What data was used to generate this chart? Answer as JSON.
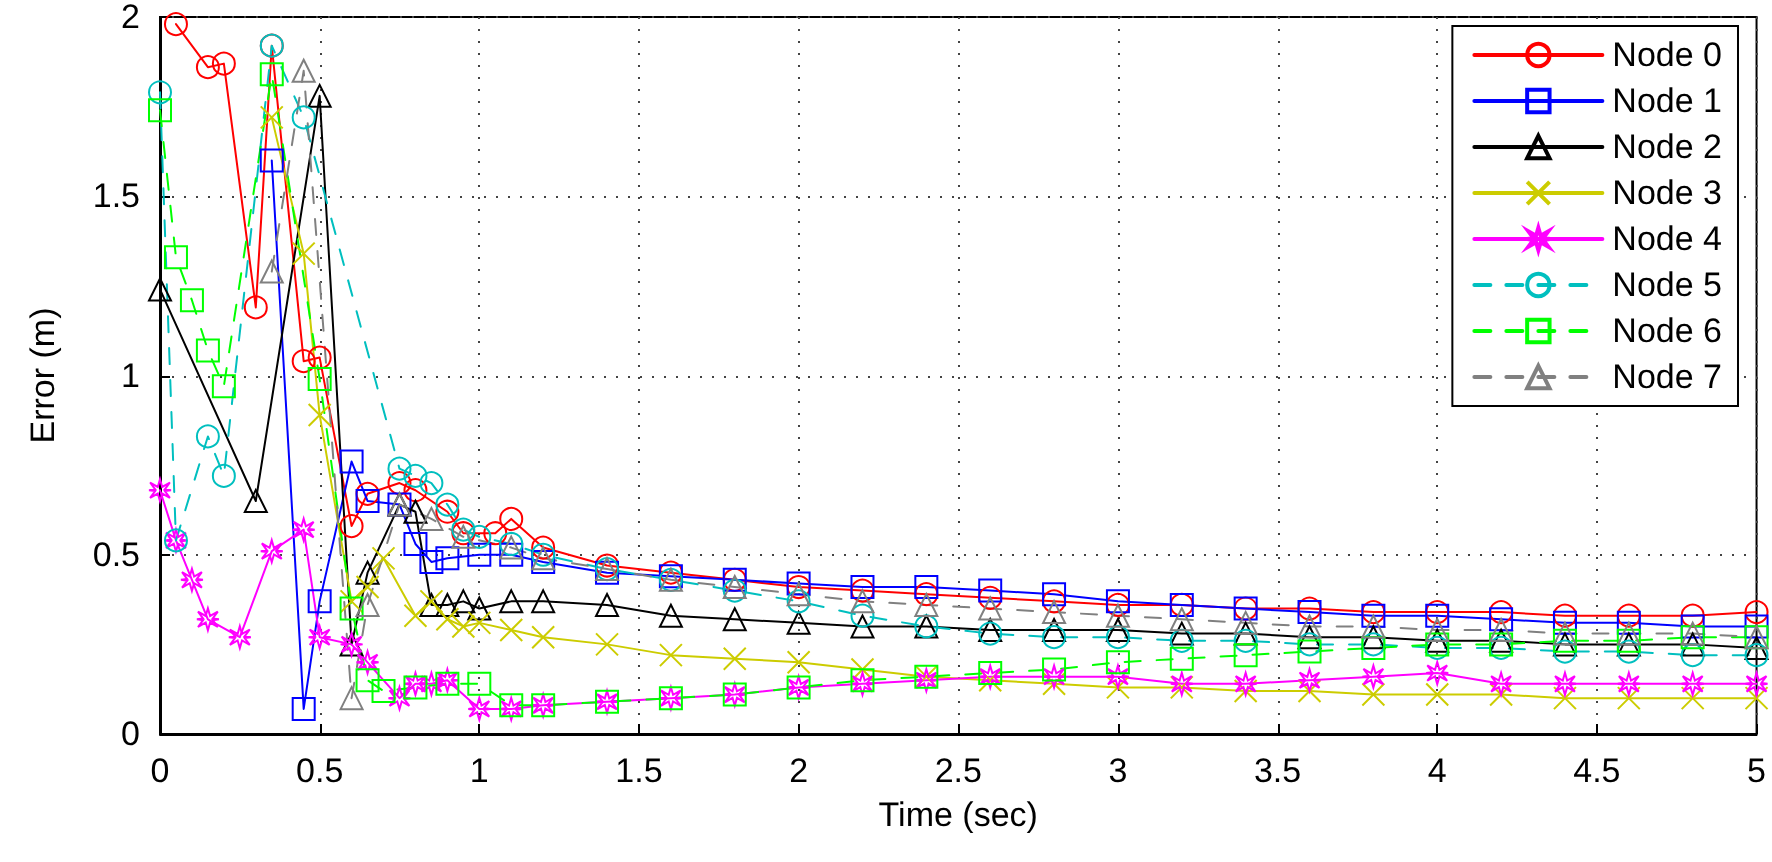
{
  "chart_data": {
    "type": "line",
    "xlabel": "Time (sec)",
    "ylabel": "Error (m)",
    "xlim": [
      0,
      5
    ],
    "xticks": [
      0,
      0.5,
      1,
      1.5,
      2,
      2.5,
      3,
      3.5,
      4,
      4.5,
      5
    ],
    "ylim": [
      0,
      2
    ],
    "yticks": [
      0,
      0.5,
      1,
      1.5,
      2
    ],
    "grid": true,
    "legend": "top right",
    "series": [
      {
        "name": "Node 0",
        "color": "#ff0000",
        "marker": "circle",
        "line_style": "solid",
        "x": [
          0.05,
          0.15,
          0.2,
          0.3,
          0.35,
          0.45,
          0.5,
          0.6,
          0.65,
          0.75,
          0.8,
          0.9,
          0.95,
          1.05,
          1.1,
          1.2,
          1.4,
          1.6,
          1.8,
          2,
          2.2,
          2.4,
          2.6,
          2.8,
          3,
          3.2,
          3.4,
          3.6,
          3.8,
          4,
          4.2,
          4.4,
          4.6,
          4.8,
          5
        ],
        "values": [
          1.98,
          1.86,
          1.87,
          1.19,
          1.92,
          1.04,
          1.05,
          0.58,
          0.67,
          0.7,
          0.68,
          0.62,
          0.56,
          0.56,
          0.6,
          0.52,
          0.47,
          0.45,
          0.43,
          0.41,
          0.4,
          0.39,
          0.38,
          0.37,
          0.36,
          0.36,
          0.35,
          0.35,
          0.34,
          0.34,
          0.34,
          0.33,
          0.33,
          0.33,
          0.34
        ]
      },
      {
        "name": "Node 1",
        "color": "#0000ff",
        "marker": "square",
        "line_style": "solid",
        "x": [
          0.35,
          0.45,
          0.5,
          0.6,
          0.65,
          0.75,
          0.8,
          0.85,
          0.9,
          1,
          1.1,
          1.2,
          1.4,
          1.6,
          1.8,
          2,
          2.2,
          2.4,
          2.6,
          2.8,
          3,
          3.2,
          3.4,
          3.6,
          3.8,
          4,
          4.2,
          4.4,
          4.6,
          4.8,
          5
        ],
        "values": [
          1.6,
          0.07,
          0.37,
          0.76,
          0.65,
          0.64,
          0.53,
          0.48,
          0.49,
          0.5,
          0.5,
          0.48,
          0.45,
          0.44,
          0.43,
          0.42,
          0.41,
          0.41,
          0.4,
          0.39,
          0.37,
          0.36,
          0.35,
          0.34,
          0.33,
          0.33,
          0.32,
          0.31,
          0.31,
          0.3,
          0.3
        ]
      },
      {
        "name": "Node 2",
        "color": "#000000",
        "marker": "triangle",
        "line_style": "solid",
        "x": [
          0,
          0.3,
          0.5,
          0.6,
          0.65,
          0.75,
          0.8,
          0.85,
          0.9,
          0.95,
          1,
          1.1,
          1.2,
          1.4,
          1.6,
          1.8,
          2,
          2.2,
          2.4,
          2.6,
          2.8,
          3,
          3.2,
          3.4,
          3.6,
          3.8,
          4,
          4.2,
          4.4,
          4.6,
          4.8,
          5
        ],
        "values": [
          1.24,
          0.65,
          1.78,
          0.25,
          0.45,
          0.64,
          0.62,
          0.36,
          0.36,
          0.37,
          0.35,
          0.37,
          0.37,
          0.36,
          0.33,
          0.32,
          0.31,
          0.3,
          0.3,
          0.29,
          0.29,
          0.29,
          0.28,
          0.28,
          0.27,
          0.27,
          0.26,
          0.26,
          0.25,
          0.25,
          0.25,
          0.24
        ]
      },
      {
        "name": "Node 3",
        "color": "#cccc00",
        "marker": "cross",
        "line_style": "solid",
        "x": [
          0.35,
          0.45,
          0.5,
          0.6,
          0.65,
          0.7,
          0.8,
          0.85,
          0.9,
          0.95,
          1,
          1.1,
          1.2,
          1.4,
          1.6,
          1.8,
          2,
          2.2,
          2.4,
          2.6,
          2.8,
          3,
          3.2,
          3.4,
          3.6,
          3.8,
          4,
          4.2,
          4.4,
          4.6,
          4.8,
          5
        ],
        "values": [
          1.72,
          1.34,
          0.89,
          0.37,
          0.41,
          0.49,
          0.33,
          0.37,
          0.32,
          0.3,
          0.31,
          0.29,
          0.27,
          0.25,
          0.22,
          0.21,
          0.2,
          0.18,
          0.16,
          0.15,
          0.14,
          0.13,
          0.13,
          0.12,
          0.12,
          0.11,
          0.11,
          0.11,
          0.1,
          0.1,
          0.1,
          0.1
        ]
      },
      {
        "name": "Node 4",
        "color": "#ff00ff",
        "marker": "star",
        "line_style": "solid",
        "x": [
          0,
          0.05,
          0.1,
          0.15,
          0.25,
          0.35,
          0.45,
          0.5,
          0.6,
          0.65,
          0.75,
          0.8,
          0.85,
          0.9,
          1,
          1.1,
          1.2,
          1.4,
          1.6,
          1.8,
          2,
          2.2,
          2.4,
          2.6,
          2.8,
          3,
          3.2,
          3.4,
          3.6,
          3.8,
          4,
          4.2,
          4.4,
          4.6,
          4.8,
          5
        ],
        "values": [
          0.68,
          0.54,
          0.43,
          0.32,
          0.27,
          0.51,
          0.57,
          0.27,
          0.25,
          0.2,
          0.1,
          0.14,
          0.14,
          0.15,
          0.07,
          0.07,
          0.08,
          0.09,
          0.1,
          0.11,
          0.13,
          0.14,
          0.15,
          0.16,
          0.16,
          0.16,
          0.14,
          0.14,
          0.15,
          0.16,
          0.17,
          0.14,
          0.14,
          0.14,
          0.14,
          0.14
        ]
      },
      {
        "name": "Node 5",
        "color": "#00bfbf",
        "marker": "circle",
        "line_style": "dashed",
        "x": [
          0,
          0.05,
          0.15,
          0.2,
          0.35,
          0.45,
          0.75,
          0.8,
          0.85,
          0.9,
          0.95,
          1,
          1.1,
          1.2,
          1.4,
          1.6,
          1.8,
          2,
          2.2,
          2.4,
          2.6,
          2.8,
          3,
          3.2,
          3.4,
          3.6,
          3.8,
          4,
          4.2,
          4.4,
          4.6,
          4.8,
          5
        ],
        "values": [
          1.79,
          0.54,
          0.83,
          0.72,
          1.92,
          1.72,
          0.74,
          0.72,
          0.7,
          0.64,
          0.57,
          0.55,
          0.53,
          0.5,
          0.46,
          0.43,
          0.4,
          0.37,
          0.33,
          0.3,
          0.28,
          0.27,
          0.27,
          0.26,
          0.26,
          0.25,
          0.25,
          0.24,
          0.24,
          0.23,
          0.23,
          0.22,
          0.22
        ]
      },
      {
        "name": "Node 6",
        "color": "#00ff00",
        "marker": "square",
        "line_style": "dashed",
        "x": [
          0,
          0.05,
          0.1,
          0.15,
          0.2,
          0.35,
          0.5,
          0.6,
          0.65,
          0.7,
          0.8,
          0.9,
          1,
          1.1,
          1.2,
          1.4,
          1.6,
          1.8,
          2,
          2.2,
          2.4,
          2.6,
          2.8,
          3,
          3.2,
          3.4,
          3.6,
          3.8,
          4,
          4.2,
          4.4,
          4.6,
          4.8,
          5
        ],
        "values": [
          1.74,
          1.33,
          1.21,
          1.07,
          0.97,
          1.84,
          0.99,
          0.35,
          0.15,
          0.12,
          0.13,
          0.14,
          0.14,
          0.08,
          0.08,
          0.09,
          0.1,
          0.11,
          0.13,
          0.15,
          0.16,
          0.17,
          0.18,
          0.2,
          0.21,
          0.22,
          0.23,
          0.24,
          0.25,
          0.25,
          0.26,
          0.26,
          0.27,
          0.27
        ]
      },
      {
        "name": "Node 7",
        "color": "#808080",
        "marker": "triangle",
        "line_style": "dashed",
        "x": [
          0.35,
          0.45,
          0.6,
          0.65,
          0.75,
          0.85,
          0.95,
          1.1,
          1.2,
          1.4,
          1.6,
          1.8,
          2,
          2.2,
          2.4,
          2.6,
          2.8,
          3,
          3.2,
          3.4,
          3.6,
          3.8,
          4,
          4.2,
          4.4,
          4.6,
          4.8,
          5
        ],
        "values": [
          1.29,
          1.85,
          0.1,
          0.36,
          0.64,
          0.6,
          0.55,
          0.52,
          0.49,
          0.46,
          0.43,
          0.41,
          0.39,
          0.37,
          0.36,
          0.35,
          0.34,
          0.33,
          0.32,
          0.31,
          0.3,
          0.3,
          0.29,
          0.29,
          0.28,
          0.28,
          0.28,
          0.27
        ]
      }
    ]
  }
}
